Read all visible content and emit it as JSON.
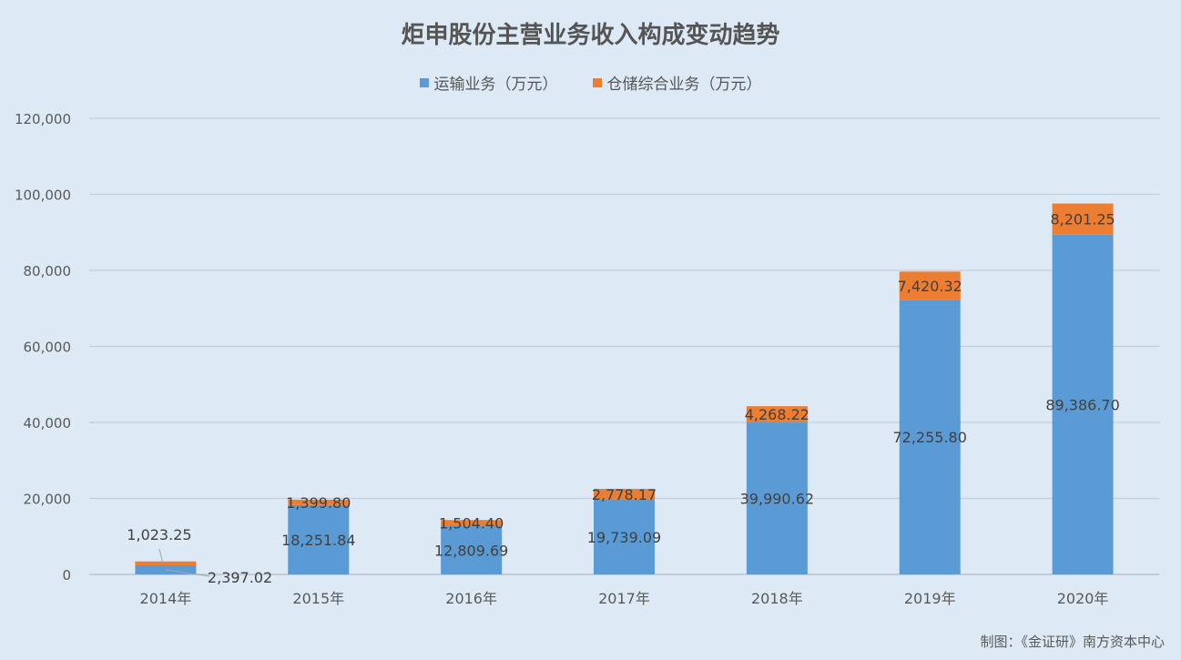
{
  "chart_data": {
    "type": "bar",
    "stacked": true,
    "title": "炬申股份主营业务收入构成变动趋势",
    "categories": [
      "2014年",
      "2015年",
      "2016年",
      "2017年",
      "2018年",
      "2019年",
      "2020年"
    ],
    "series": [
      {
        "name": "运输业务（万元）",
        "color": "#5b9bd5",
        "values": [
          2397.02,
          18251.84,
          12809.69,
          19739.09,
          39990.62,
          72255.8,
          89386.7
        ],
        "labels": [
          "2,397.02",
          "18,251.84",
          "12,809.69",
          "19,739.09",
          "39,990.62",
          "72,255.80",
          "89,386.70"
        ]
      },
      {
        "name": "仓储综合业务（万元）",
        "color": "#ed7d31",
        "values": [
          1023.25,
          1399.8,
          1504.4,
          2778.17,
          4268.22,
          7420.32,
          8201.25
        ],
        "labels": [
          "1,023.25",
          "1,399.80",
          "1,504.40",
          "2,778.17",
          "4,268.22",
          "7,420.32",
          "8,201.25"
        ]
      }
    ],
    "ylim": [
      0,
      120000
    ],
    "yticks": [
      0,
      20000,
      40000,
      60000,
      80000,
      100000,
      120000
    ],
    "ytick_labels": [
      "0",
      "20,000",
      "40,000",
      "60,000",
      "80,000",
      "100,000",
      "120,000"
    ],
    "grid": true,
    "legend_position": "top-center"
  },
  "footer": {
    "credit": "制图：《金证研》南方资本中心"
  }
}
